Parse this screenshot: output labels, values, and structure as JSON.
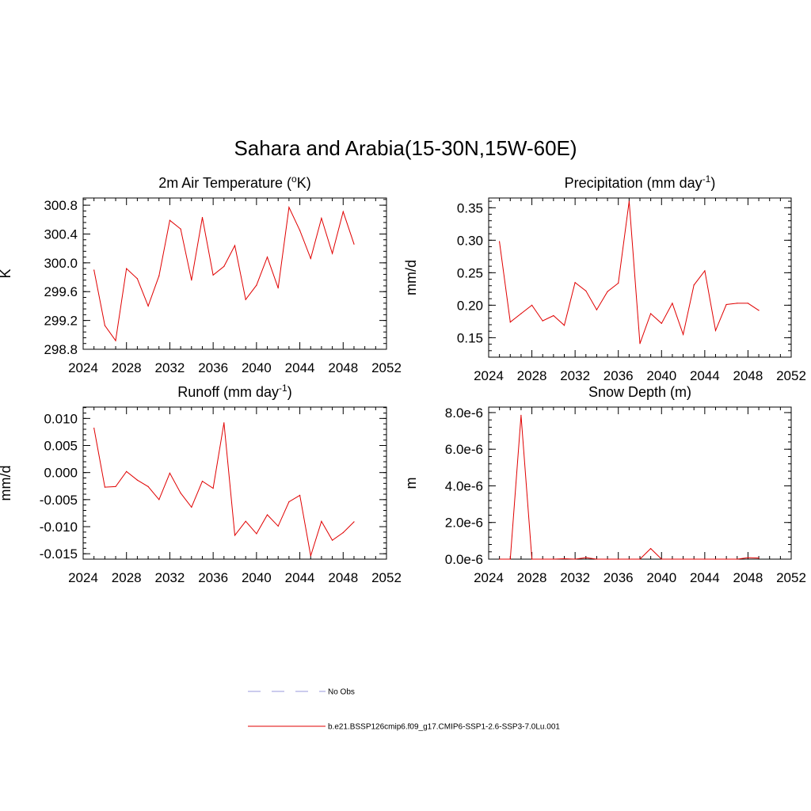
{
  "page_title": "Sahara and Arabia(15-30N,15W-60E)",
  "colors": {
    "series": "#e00000",
    "no_obs": "#9999dd",
    "axis": "#000000"
  },
  "legend": [
    {
      "label": "No Obs",
      "style": "dashed",
      "color": "#9999dd"
    },
    {
      "label": "b.e21.BSSP126cmip6.f09_g17.CMIP6-SSP1-2.6-SSP3-7.0Lu.001",
      "style": "solid",
      "color": "#e00000"
    }
  ],
  "chart_data": [
    {
      "id": "temp",
      "type": "line",
      "title": "2m Air Temperature (",
      "title_sup": "o",
      "title_after": "K)",
      "ylabel": "K",
      "xlim": [
        2024,
        2052
      ],
      "ylim": [
        298.8,
        300.9
      ],
      "x_ticks": [
        2024,
        2028,
        2032,
        2036,
        2040,
        2044,
        2048,
        2052
      ],
      "y_ticks": [
        298.8,
        299.2,
        299.6,
        300.0,
        300.4,
        300.8
      ],
      "y_tick_labels": [
        "298.8",
        "299.2",
        "299.6",
        "300.0",
        "300.4",
        "300.8"
      ],
      "x": [
        2025,
        2026,
        2027,
        2028,
        2029,
        2030,
        2031,
        2032,
        2033,
        2034,
        2035,
        2036,
        2037,
        2038,
        2039,
        2040,
        2041,
        2042,
        2043,
        2044,
        2045,
        2046,
        2047,
        2048,
        2049
      ],
      "series": [
        {
          "values": [
            299.9,
            299.13,
            298.92,
            299.92,
            299.78,
            299.4,
            299.82,
            300.59,
            300.47,
            299.76,
            300.63,
            299.83,
            299.95,
            300.24,
            299.49,
            299.69,
            300.08,
            299.65,
            300.77,
            300.45,
            300.06,
            300.62,
            300.13,
            300.71,
            300.26
          ]
        }
      ]
    },
    {
      "id": "precip",
      "type": "line",
      "title": "Precipitation (mm day",
      "title_sup": "-1",
      "title_after": ")",
      "ylabel": "mm/d",
      "xlim": [
        2024,
        2052
      ],
      "ylim": [
        0.12,
        0.365
      ],
      "x_ticks": [
        2024,
        2028,
        2032,
        2036,
        2040,
        2044,
        2048,
        2052
      ],
      "y_ticks": [
        0.15,
        0.2,
        0.25,
        0.3,
        0.35
      ],
      "y_tick_labels": [
        "0.15",
        "0.20",
        "0.25",
        "0.30",
        "0.35"
      ],
      "x": [
        2025,
        2026,
        2027,
        2028,
        2029,
        2030,
        2031,
        2032,
        2033,
        2034,
        2035,
        2036,
        2037,
        2038,
        2039,
        2040,
        2041,
        2042,
        2043,
        2044,
        2045,
        2046,
        2047,
        2048,
        2049
      ],
      "series": [
        {
          "values": [
            0.298,
            0.174,
            0.187,
            0.2,
            0.176,
            0.184,
            0.169,
            0.235,
            0.222,
            0.193,
            0.221,
            0.234,
            0.36,
            0.141,
            0.187,
            0.172,
            0.203,
            0.155,
            0.231,
            0.253,
            0.161,
            0.201,
            0.203,
            0.203,
            0.192
          ]
        }
      ]
    },
    {
      "id": "runoff",
      "type": "line",
      "title": "Runoff (mm day",
      "title_sup": "-1",
      "title_after": ")",
      "ylabel": "mm/d",
      "xlim": [
        2024,
        2052
      ],
      "ylim": [
        -0.016,
        0.0121
      ],
      "x_ticks": [
        2024,
        2028,
        2032,
        2036,
        2040,
        2044,
        2048,
        2052
      ],
      "y_ticks": [
        -0.015,
        -0.01,
        -0.005,
        0.0,
        0.005,
        0.01
      ],
      "y_tick_labels": [
        "-0.015",
        "-0.010",
        "-0.005",
        "0.000",
        "0.005",
        "0.010"
      ],
      "x": [
        2025,
        2026,
        2027,
        2028,
        2029,
        2030,
        2031,
        2032,
        2033,
        2034,
        2035,
        2036,
        2037,
        2038,
        2039,
        2040,
        2041,
        2042,
        2043,
        2044,
        2045,
        2046,
        2047,
        2048,
        2049
      ],
      "series": [
        {
          "values": [
            0.0082,
            -0.0027,
            -0.0026,
            0.0002,
            -0.0014,
            -0.0026,
            -0.005,
            -0.0001,
            -0.0038,
            -0.0064,
            -0.0016,
            -0.0029,
            0.0092,
            -0.0116,
            -0.009,
            -0.0113,
            -0.0078,
            -0.0099,
            -0.0054,
            -0.0042,
            -0.0154,
            -0.009,
            -0.0125,
            -0.0111,
            -0.0091
          ]
        }
      ]
    },
    {
      "id": "snow",
      "type": "line",
      "title": "Snow Depth (m)",
      "title_sup": "",
      "title_after": "",
      "ylabel": "m",
      "xlim": [
        2024,
        2052
      ],
      "ylim": [
        0,
        8.3e-06
      ],
      "x_ticks": [
        2024,
        2028,
        2032,
        2036,
        2040,
        2044,
        2048,
        2052
      ],
      "y_ticks": [
        0,
        2e-06,
        4e-06,
        6e-06,
        8e-06
      ],
      "y_tick_labels": [
        "0.0e-6",
        "2.0e-6",
        "4.0e-6",
        "6.0e-6",
        "8.0e-6"
      ],
      "x": [
        2025,
        2026,
        2027,
        2028,
        2029,
        2030,
        2031,
        2032,
        2033,
        2034,
        2035,
        2036,
        2037,
        2038,
        2039,
        2040,
        2041,
        2042,
        2043,
        2044,
        2045,
        2046,
        2047,
        2048,
        2049
      ],
      "series": [
        {
          "values": [
            0,
            0,
            7.85e-06,
            0,
            0,
            0,
            2e-08,
            0,
            8e-08,
            0,
            0,
            0,
            0,
            0,
            5.8e-07,
            0,
            0,
            0,
            0,
            0,
            0,
            0,
            0,
            8e-08,
            6e-08
          ]
        }
      ]
    }
  ]
}
